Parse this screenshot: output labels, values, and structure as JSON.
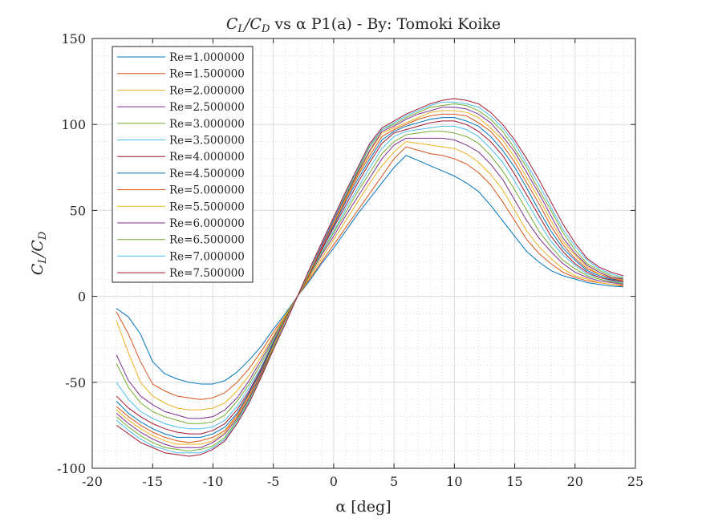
{
  "chart_data": {
    "type": "line",
    "title": "C_L/C_D vs α P1(a) - By: Tomoki Koike",
    "title_parts": {
      "main": "C",
      "sub1": "L",
      "slash": "/C",
      "sub2": "D",
      "rest": " vs α P1(a) - By: Tomoki Koike"
    },
    "xlabel": "α [deg]",
    "ylabel": "C_L/C_D",
    "ylabel_parts": {
      "main": "C",
      "sub1": "L",
      "slash": "/C",
      "sub2": "D"
    },
    "xlim": [
      -20,
      25
    ],
    "ylim": [
      -100,
      150
    ],
    "xticks": [
      -20,
      -15,
      -10,
      -5,
      0,
      5,
      10,
      15,
      20,
      25
    ],
    "yticks": [
      -100,
      -50,
      0,
      50,
      100,
      150
    ],
    "xtick_labels": [
      "-20",
      "-15",
      "-10",
      "-5",
      "0",
      "5",
      "10",
      "15",
      "20",
      "25"
    ],
    "ytick_labels": [
      "-100",
      "-50",
      "0",
      "50",
      "100",
      "150"
    ],
    "grid": true,
    "minor_grid": true,
    "legend_position": "top-left",
    "x": [
      -18,
      -17,
      -16,
      -15,
      -14,
      -13,
      -12,
      -11,
      -10,
      -9,
      -8,
      -7,
      -6,
      -5,
      -4,
      -3,
      -2,
      -1,
      0,
      1,
      2,
      3,
      4,
      5,
      6,
      7,
      8,
      9,
      10,
      11,
      12,
      13,
      14,
      15,
      16,
      17,
      18,
      19,
      20,
      21,
      22,
      23,
      24
    ],
    "series": [
      {
        "name": "Re=1.000000",
        "color": "#0072bd",
        "values": [
          -7,
          -12,
          -22,
          -38,
          -45,
          -48,
          -50,
          -51,
          -51,
          -49,
          -44,
          -37,
          -29,
          -19,
          -10,
          0,
          9,
          19,
          28,
          38,
          48,
          57,
          66,
          75,
          82,
          79,
          76,
          73,
          70,
          66,
          61,
          53,
          44,
          35,
          26,
          20,
          15,
          12,
          10,
          8,
          7,
          6,
          5.5
        ]
      },
      {
        "name": "Re=1.500000",
        "color": "#d95319",
        "values": [
          -9,
          -22,
          -38,
          -51,
          -55,
          -58,
          -59,
          -60,
          -59,
          -56,
          -50,
          -42,
          -32,
          -21,
          -11,
          0,
          10,
          20,
          30,
          40,
          50,
          60,
          70,
          80,
          87,
          85,
          83,
          82,
          80,
          77,
          72,
          65,
          55,
          44,
          33,
          25,
          19,
          14,
          11,
          9,
          8,
          7,
          6
        ]
      },
      {
        "name": "Re=2.000000",
        "color": "#edb120",
        "values": [
          -14,
          -33,
          -50,
          -58,
          -62,
          -65,
          -66,
          -66,
          -65,
          -62,
          -55,
          -46,
          -35,
          -23,
          -11,
          0,
          11,
          22,
          33,
          44,
          55,
          66,
          76,
          84,
          90,
          89,
          88,
          87,
          86,
          83,
          78,
          71,
          62,
          50,
          38,
          29,
          22,
          16,
          12,
          10,
          8,
          7,
          6.5
        ]
      },
      {
        "name": "Re=2.500000",
        "color": "#7e2f8e",
        "values": [
          -34,
          -49,
          -58,
          -63,
          -67,
          -69,
          -71,
          -71,
          -70,
          -66,
          -59,
          -49,
          -37,
          -24,
          -12,
          0,
          12,
          24,
          35,
          47,
          58,
          69,
          80,
          88,
          92,
          92,
          92,
          92,
          91,
          88,
          84,
          77,
          68,
          56,
          44,
          34,
          26,
          19,
          14,
          11,
          9,
          8,
          7
        ]
      },
      {
        "name": "Re=3.000000",
        "color": "#77ac30",
        "values": [
          -39,
          -53,
          -62,
          -67,
          -70,
          -72,
          -74,
          -74,
          -73,
          -69,
          -61,
          -51,
          -39,
          -25,
          -12,
          0,
          12,
          25,
          37,
          49,
          61,
          72,
          83,
          90,
          94,
          95,
          96,
          96,
          95,
          93,
          89,
          82,
          73,
          62,
          50,
          38,
          29,
          21,
          16,
          12,
          10,
          8.5,
          7.5
        ]
      },
      {
        "name": "Re=3.500000",
        "color": "#4dbeee",
        "values": [
          -50,
          -60,
          -67,
          -71,
          -74,
          -76,
          -77,
          -77,
          -76,
          -72,
          -64,
          -53,
          -41,
          -26,
          -13,
          0,
          13,
          26,
          38,
          51,
          63,
          75,
          86,
          93,
          96,
          97,
          98,
          99,
          99,
          97,
          93,
          86,
          78,
          67,
          55,
          43,
          32,
          24,
          18,
          13,
          11,
          9,
          8
        ]
      },
      {
        "name": "Re=4.000000",
        "color": "#a2142f",
        "values": [
          -58,
          -65,
          -70,
          -74,
          -77,
          -79,
          -80,
          -80,
          -78,
          -74,
          -66,
          -55,
          -42,
          -27,
          -13,
          0,
          13,
          27,
          40,
          53,
          66,
          78,
          89,
          95,
          97,
          99,
          101,
          102,
          102,
          100,
          96,
          90,
          82,
          71,
          59,
          47,
          35,
          26,
          19,
          14,
          11,
          9.5,
          8.5
        ]
      },
      {
        "name": "Re=4.500000",
        "color": "#0072bd",
        "values": [
          -61,
          -68,
          -73,
          -77,
          -80,
          -82,
          -82,
          -82,
          -80,
          -76,
          -68,
          -56,
          -43,
          -28,
          -14,
          0,
          14,
          28,
          41,
          55,
          68,
          80,
          91,
          96,
          99,
          101,
          103,
          104,
          104,
          102,
          99,
          93,
          85,
          75,
          63,
          50,
          38,
          28,
          21,
          15,
          12,
          10,
          9
        ]
      },
      {
        "name": "Re=5.000000",
        "color": "#d95319",
        "values": [
          -64,
          -70,
          -75,
          -79,
          -82,
          -84,
          -85,
          -84,
          -82,
          -78,
          -69,
          -57,
          -44,
          -29,
          -14,
          0,
          14,
          28,
          42,
          56,
          70,
          82,
          93,
          97,
          100,
          103,
          105,
          106,
          106,
          105,
          101,
          96,
          88,
          78,
          66,
          54,
          41,
          30,
          22,
          16,
          13,
          10.5,
          9
        ]
      },
      {
        "name": "Re=5.500000",
        "color": "#edb120",
        "values": [
          -66,
          -72,
          -77,
          -81,
          -84,
          -86,
          -86,
          -86,
          -84,
          -79,
          -70,
          -58,
          -45,
          -29,
          -14,
          0,
          14,
          29,
          43,
          57,
          71,
          84,
          95,
          98,
          101,
          104,
          107,
          108,
          108,
          107,
          104,
          98,
          91,
          81,
          69,
          57,
          44,
          32,
          24,
          17,
          13,
          11,
          9.5
        ]
      },
      {
        "name": "Re=6.000000",
        "color": "#7e2f8e",
        "values": [
          -68,
          -74,
          -79,
          -83,
          -86,
          -88,
          -88,
          -88,
          -85,
          -80,
          -71,
          -59,
          -45,
          -30,
          -15,
          0,
          15,
          29,
          44,
          58,
          72,
          85,
          96,
          99,
          103,
          106,
          108,
          110,
          110,
          109,
          106,
          101,
          93,
          84,
          72,
          60,
          47,
          34,
          25,
          18,
          14,
          11,
          10
        ]
      },
      {
        "name": "Re=6.500000",
        "color": "#77ac30",
        "values": [
          -70,
          -76,
          -81,
          -85,
          -88,
          -89,
          -90,
          -89,
          -87,
          -82,
          -72,
          -60,
          -46,
          -30,
          -15,
          0,
          15,
          30,
          45,
          59,
          73,
          87,
          97,
          100,
          104,
          107,
          110,
          111,
          112,
          111,
          108,
          103,
          96,
          86,
          75,
          62,
          50,
          37,
          27,
          19,
          15,
          12,
          10.5
        ]
      },
      {
        "name": "Re=7.000000",
        "color": "#4dbeee",
        "values": [
          -72,
          -78,
          -83,
          -87,
          -89,
          -91,
          -91,
          -91,
          -88,
          -83,
          -73,
          -61,
          -47,
          -31,
          -15,
          0,
          15,
          30,
          45,
          60,
          74,
          88,
          97,
          101,
          105,
          108,
          111,
          113,
          113,
          112,
          110,
          105,
          98,
          89,
          77,
          65,
          52,
          39,
          29,
          21,
          16,
          13,
          11
        ]
      },
      {
        "name": "Re=7.500000",
        "color": "#a2142f",
        "values": [
          -75,
          -80,
          -85,
          -88,
          -91,
          -92,
          -93,
          -92,
          -89,
          -84,
          -74,
          -62,
          -47,
          -31,
          -16,
          0,
          16,
          31,
          46,
          61,
          75,
          89,
          98,
          102,
          106,
          109,
          112,
          114,
          115,
          114,
          112,
          107,
          100,
          91,
          80,
          68,
          55,
          42,
          31,
          22,
          17,
          14,
          12
        ]
      }
    ]
  }
}
